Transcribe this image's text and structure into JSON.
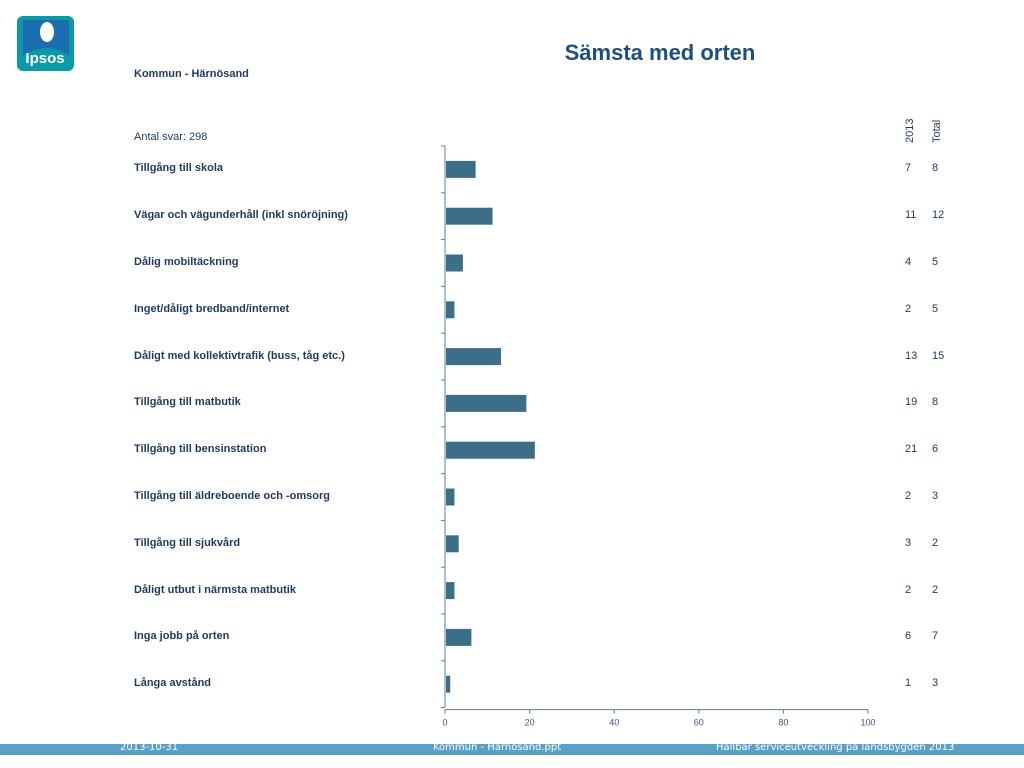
{
  "header": {
    "title": "Sämsta med orten",
    "subtitle": "Kommun - Härnösand",
    "base_label": "Antal svar: 298",
    "logo_text": "Ipsos"
  },
  "columns": [
    "2013",
    "Total"
  ],
  "chart_data": {
    "type": "bar",
    "orientation": "horizontal",
    "categories": [
      "Tillgång till skola",
      "Vägar och vägunderhåll (inkl snöröjning)",
      "Dålig mobiltäckning",
      "Inget/dåligt bredband/internet",
      "Dåligt med kollektivtrafik (buss, tåg etc.)",
      "Tillgång till matbutik",
      "Tillgång till bensinstation",
      "Tillgång till äldreboende och -omsorg",
      "Tillgång till sjukvård",
      "Dåligt utbut i närmsta matbutik",
      "Inga jobb på orten",
      "Långa avstånd"
    ],
    "series": [
      {
        "name": "2013",
        "values": [
          7,
          11,
          4,
          2,
          13,
          19,
          21,
          2,
          3,
          2,
          6,
          1
        ]
      },
      {
        "name": "Total",
        "values": [
          8,
          12,
          5,
          5,
          15,
          8,
          6,
          3,
          2,
          2,
          7,
          3
        ]
      }
    ],
    "xlim": [
      0,
      100
    ],
    "xticks": [
      "0",
      "20",
      "40",
      "60",
      "80",
      "100"
    ],
    "bar_color": "#3d6e87",
    "grid": false
  },
  "footer": {
    "date": "2013-10-31",
    "file": "Kommun - Härnösand.ppt",
    "project": "Hållbar serviceutveckling på landsbygden 2013",
    "bar_color": "#5aa0c8"
  }
}
